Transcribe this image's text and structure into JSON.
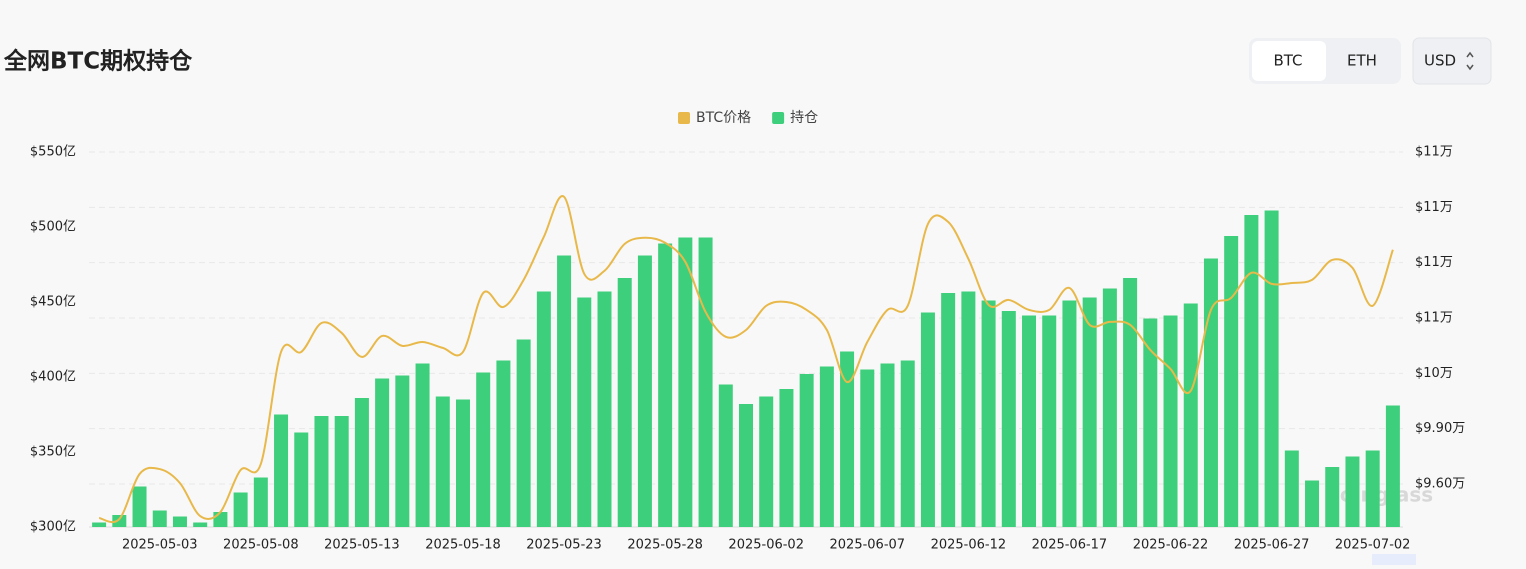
{
  "title": "全网BTC期权持仓",
  "controls": {
    "coins": [
      "BTC",
      "ETH"
    ],
    "currency": "USD"
  },
  "watermark": "coinglass",
  "chart_data": {
    "type": "bar",
    "categories": [
      null,
      null,
      null,
      "2025-05-03",
      null,
      null,
      null,
      null,
      "2025-05-08",
      null,
      null,
      null,
      null,
      "2025-05-13",
      null,
      null,
      null,
      null,
      "2025-05-18",
      null,
      null,
      null,
      null,
      "2025-05-23",
      null,
      null,
      null,
      null,
      "2025-05-28",
      null,
      null,
      null,
      null,
      "2025-06-02",
      null,
      null,
      null,
      null,
      "2025-06-07",
      null,
      null,
      null,
      null,
      "2025-06-12",
      null,
      null,
      null,
      null,
      "2025-06-17",
      null,
      null,
      null,
      null,
      "2025-06-22",
      null,
      null,
      null,
      null,
      "2025-06-27",
      null,
      null,
      null,
      null,
      "2025-07-02",
      null
    ],
    "series": [
      {
        "name": "BTC价格",
        "color": "#e8b94a",
        "type": "line",
        "axis": "y2",
        "values": [
          94160,
          94100,
          96540,
          96810,
          96050,
          94260,
          94480,
          96760,
          97090,
          103160,
          103160,
          104730,
          104190,
          102890,
          104030,
          103490,
          103700,
          103380,
          103160,
          106360,
          105600,
          107070,
          109400,
          111570,
          107390,
          107560,
          109020,
          109350,
          109080,
          108040,
          105330,
          103980,
          104350,
          105660,
          105870,
          105440,
          104350,
          101530,
          103700,
          105440,
          105660,
          110100,
          110210,
          108210,
          105710,
          105980,
          105440,
          105440,
          106630,
          104630,
          104790,
          104630,
          103270,
          102240,
          101050,
          105440,
          106090,
          107450,
          106850,
          106900,
          107070,
          108150,
          107720,
          105660,
          108700
        ]
      },
      {
        "name": "持仓",
        "color": "#3ecf7c",
        "type": "bar",
        "values": [
          303,
          308,
          327,
          311,
          307,
          303,
          310,
          323,
          333,
          375,
          363,
          374,
          374,
          386,
          399,
          401,
          409,
          387,
          385,
          403,
          411,
          425,
          457,
          481,
          453,
          457,
          466,
          481,
          489,
          493,
          493,
          395,
          382,
          387,
          392,
          402,
          407,
          417,
          405,
          409,
          411,
          443,
          456,
          457,
          451,
          444,
          441,
          441,
          451,
          453,
          459,
          466,
          439,
          441,
          449,
          479,
          494,
          508,
          511,
          351,
          331,
          340,
          347,
          351,
          381
        ]
      }
    ],
    "ylim": [
      300,
      550
    ],
    "yticks": [
      {
        "value": 300,
        "label": "$300亿"
      },
      {
        "value": 350,
        "label": "$350亿"
      },
      {
        "value": 400,
        "label": "$400亿"
      },
      {
        "value": 450,
        "label": "$450亿"
      },
      {
        "value": 500,
        "label": "$500亿"
      },
      {
        "value": 550,
        "label": "$550亿"
      }
    ],
    "y2lim": [
      93670,
      114000
    ],
    "y2ticks": [
      {
        "value": 96000,
        "label": "$9.60万"
      },
      {
        "value": 99000,
        "label": "$9.90万"
      },
      {
        "value": 102000,
        "label": "$10万"
      },
      {
        "value": 105000,
        "label": "$11万"
      },
      {
        "value": 108000,
        "label": "$11万"
      },
      {
        "value": 111000,
        "label": "$11万"
      },
      {
        "value": 114000,
        "label": "$11万"
      }
    ],
    "grid": true,
    "legend": "top"
  }
}
